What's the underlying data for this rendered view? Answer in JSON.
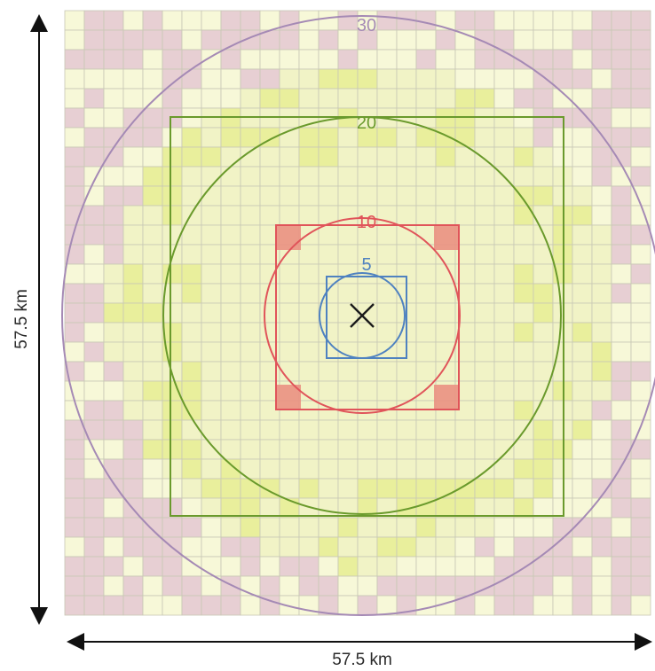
{
  "rings": [
    {
      "label": "30",
      "color": "#a58ab5"
    },
    {
      "label": "20",
      "color": "#6a9a2c"
    },
    {
      "label": "10",
      "color": "#e0545a"
    },
    {
      "label": "5",
      "color": "#4f82c0"
    }
  ],
  "squares": [
    {
      "name": "green-square",
      "color": "#6a9a2c"
    },
    {
      "name": "red-square",
      "color": "#e0545a"
    },
    {
      "name": "blue-square",
      "color": "#4f82c0"
    }
  ],
  "center_marker": {
    "icon": "cross-icon",
    "glyph": "×"
  },
  "dimensions": {
    "width": "57.5 km",
    "height": "57.5 km"
  },
  "colors": {
    "grid_base": "#f1f3c6",
    "grid_light": "#f7f8d8",
    "grid_purple": "#e7cfd3",
    "grid_yellow": "#e9ef9c",
    "grid_line": "#c8c7b5",
    "arrow": "#111111"
  }
}
